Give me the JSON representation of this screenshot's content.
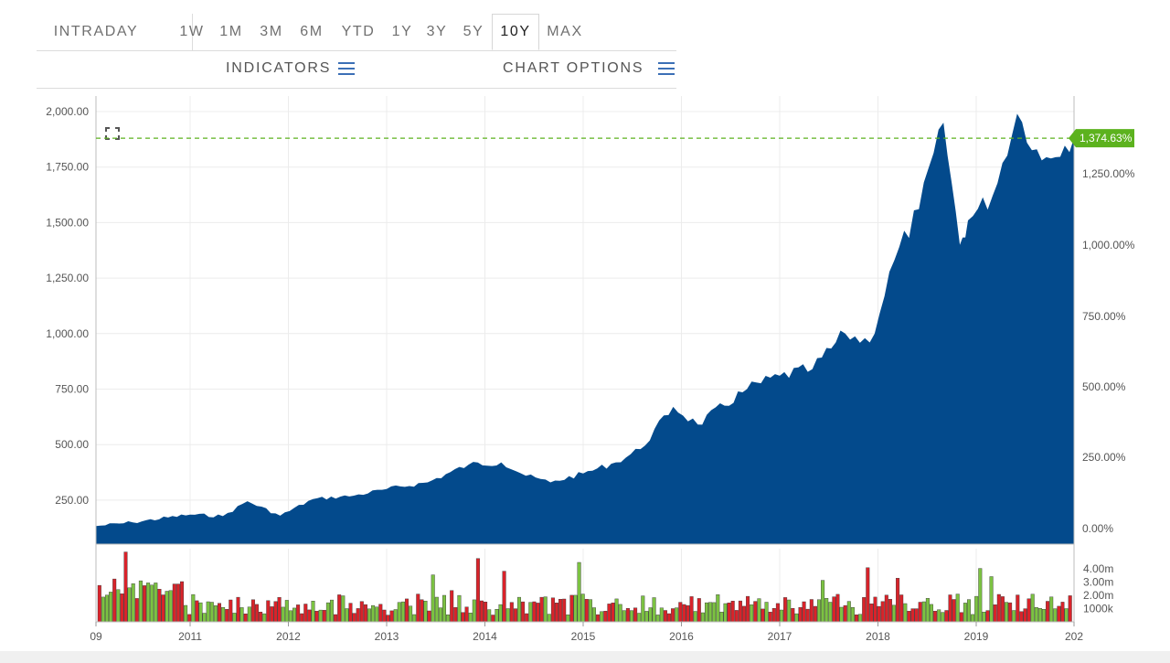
{
  "range_tabs": {
    "intraday": "INTRADAY",
    "items": [
      "1W",
      "1M",
      "3M",
      "6M",
      "YTD",
      "1Y",
      "3Y",
      "5Y",
      "10Y",
      "MAX"
    ],
    "active": "10Y"
  },
  "options": {
    "indicators": "INDICATORS",
    "chart_options": "CHART OPTIONS"
  },
  "colors": {
    "area": "#034a8c",
    "up_bar": "#7cc242",
    "down_bar": "#d9232a",
    "marker": "#5cb21e"
  },
  "chart_data": {
    "type": "area",
    "title": "",
    "y_left_ticks": [
      "2,000.00",
      "1,750.00",
      "1,500.00",
      "1,250.00",
      "1,000.00",
      "750.00",
      "500.00",
      "250.00"
    ],
    "y_right_ticks": [
      "1,250.00%",
      "1,000.00%",
      "750.00%",
      "500.00%",
      "250.00%",
      "0.00%"
    ],
    "x_ticks": [
      "09",
      "2011",
      "2012",
      "2013",
      "2014",
      "2015",
      "2016",
      "2017",
      "2018",
      "2019",
      "202"
    ],
    "ylim": [
      0,
      2000
    ],
    "current_change_label": "1,374.63%",
    "current_price": 1880,
    "series": [
      {
        "x": [
          "2010-01",
          "2010-06",
          "2011-01",
          "2011-05",
          "2011-08",
          "2011-12",
          "2012-04",
          "2012-09",
          "2013-01",
          "2013-06",
          "2013-11",
          "2014-03",
          "2014-06",
          "2014-09",
          "2015-01",
          "2015-05",
          "2015-08",
          "2015-12",
          "2016-03",
          "2016-09",
          "2017-01",
          "2017-05",
          "2017-09",
          "2017-12",
          "2018-03",
          "2018-06",
          "2018-09",
          "2018-11",
          "2018-12",
          "2019-03",
          "2019-06",
          "2019-09",
          "2019-12"
        ],
        "values": [
          133,
          150,
          185,
          178,
          245,
          180,
          255,
          270,
          300,
          330,
          410,
          420,
          360,
          330,
          370,
          420,
          480,
          670,
          590,
          750,
          810,
          840,
          1000,
          960,
          1330,
          1560,
          1950,
          1400,
          1510,
          1620,
          1990,
          1780,
          1880
        ]
      }
    ],
    "volume": {
      "ticks": [
        "4.00m",
        "3.00m",
        "2.00m",
        "1000k"
      ],
      "max": 5.5,
      "unit": "m"
    }
  }
}
